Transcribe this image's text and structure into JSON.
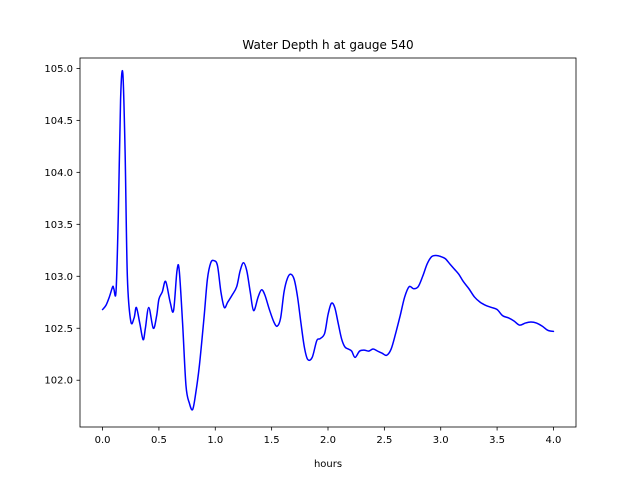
{
  "chart_data": {
    "type": "line",
    "title": "Water Depth h at gauge 540",
    "xlabel": "hours",
    "ylabel": "",
    "xlim": [
      -0.2,
      4.2
    ],
    "ylim": [
      101.55,
      105.1
    ],
    "xticks": [
      0.0,
      0.5,
      1.0,
      1.5,
      2.0,
      2.5,
      3.0,
      3.5,
      4.0
    ],
    "xtick_labels": [
      "0.0",
      "0.5",
      "1.0",
      "1.5",
      "2.0",
      "2.5",
      "3.0",
      "3.5",
      "4.0"
    ],
    "yticks": [
      102.0,
      102.5,
      103.0,
      103.5,
      104.0,
      104.5,
      105.0
    ],
    "ytick_labels": [
      "102.0",
      "102.5",
      "103.0",
      "103.5",
      "104.0",
      "104.5",
      "105.0"
    ],
    "grid": false,
    "series": [
      {
        "color": "#0000ff",
        "x": [
          0.0,
          0.03,
          0.06,
          0.09,
          0.1,
          0.12,
          0.14,
          0.16,
          0.18,
          0.2,
          0.22,
          0.25,
          0.28,
          0.3,
          0.33,
          0.36,
          0.38,
          0.41,
          0.45,
          0.48,
          0.5,
          0.53,
          0.56,
          0.6,
          0.63,
          0.66,
          0.68,
          0.71,
          0.74,
          0.77,
          0.8,
          0.83,
          0.86,
          0.9,
          0.93,
          0.96,
          0.99,
          1.02,
          1.05,
          1.08,
          1.11,
          1.15,
          1.19,
          1.22,
          1.25,
          1.28,
          1.31,
          1.34,
          1.38,
          1.41,
          1.44,
          1.48,
          1.52,
          1.55,
          1.58,
          1.61,
          1.64,
          1.67,
          1.7,
          1.73,
          1.76,
          1.79,
          1.82,
          1.86,
          1.9,
          1.93,
          1.97,
          2.0,
          2.03,
          2.06,
          2.09,
          2.12,
          2.15,
          2.18,
          2.21,
          2.24,
          2.28,
          2.32,
          2.36,
          2.4,
          2.44,
          2.48,
          2.52,
          2.56,
          2.6,
          2.64,
          2.68,
          2.72,
          2.76,
          2.8,
          2.84,
          2.88,
          2.92,
          2.96,
          3.0,
          3.04,
          3.08,
          3.12,
          3.16,
          3.2,
          3.25,
          3.3,
          3.35,
          3.4,
          3.45,
          3.5,
          3.55,
          3.6,
          3.65,
          3.7,
          3.75,
          3.8,
          3.85,
          3.9,
          3.95,
          4.0
        ],
        "y": [
          102.68,
          102.72,
          102.8,
          102.9,
          102.88,
          102.86,
          103.6,
          104.7,
          104.95,
          104.2,
          103.0,
          102.57,
          102.6,
          102.7,
          102.55,
          102.39,
          102.5,
          102.7,
          102.5,
          102.62,
          102.78,
          102.85,
          102.95,
          102.75,
          102.67,
          103.05,
          103.06,
          102.55,
          101.95,
          101.78,
          101.72,
          101.9,
          102.15,
          102.6,
          102.97,
          103.13,
          103.15,
          103.1,
          102.85,
          102.7,
          102.75,
          102.82,
          102.9,
          103.05,
          103.13,
          103.05,
          102.85,
          102.67,
          102.8,
          102.87,
          102.82,
          102.68,
          102.56,
          102.52,
          102.6,
          102.85,
          102.98,
          103.02,
          102.97,
          102.8,
          102.55,
          102.32,
          102.2,
          102.22,
          102.38,
          102.4,
          102.45,
          102.63,
          102.74,
          102.7,
          102.55,
          102.4,
          102.32,
          102.3,
          102.28,
          102.22,
          102.28,
          102.29,
          102.28,
          102.3,
          102.28,
          102.26,
          102.24,
          102.3,
          102.45,
          102.62,
          102.8,
          102.9,
          102.88,
          102.9,
          103.0,
          103.12,
          103.19,
          103.2,
          103.19,
          103.17,
          103.12,
          103.07,
          103.02,
          102.95,
          102.88,
          102.8,
          102.75,
          102.72,
          102.7,
          102.68,
          102.62,
          102.6,
          102.57,
          102.53,
          102.55,
          102.56,
          102.55,
          102.52,
          102.48,
          102.47
        ]
      }
    ]
  }
}
